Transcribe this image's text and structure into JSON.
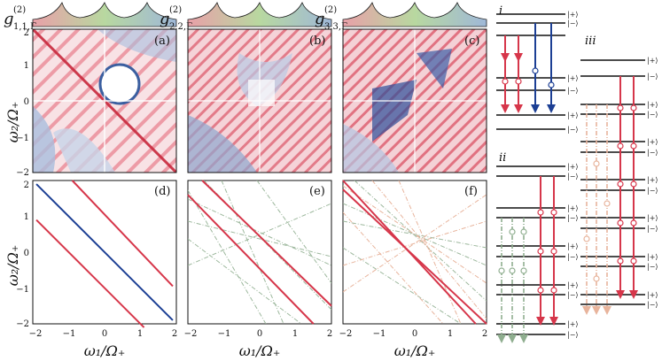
{
  "titles": [
    {
      "base": "g",
      "sup": "(2)",
      "sub": "1,1,Γ"
    },
    {
      "base": "g",
      "sup": "(2)",
      "sub": "2,2,Γ"
    },
    {
      "base": "g",
      "sup": "(2)",
      "sub": "3,3,Γ"
    }
  ],
  "panel_tags": [
    "(a)",
    "(b)",
    "(c)",
    "(d)",
    "(e)",
    "(f)"
  ],
  "axis": {
    "ylabel": "ω₂/Ω₊",
    "xlabel": "ω₁/Ω₊",
    "ticks": [
      "−2",
      "−1",
      "0",
      "1",
      "2"
    ]
  },
  "schemes": {
    "labels": [
      "i",
      "ii",
      "iii"
    ],
    "plus": "|+⟩",
    "minus": "|−⟩"
  },
  "colors": {
    "red": "#d6364a",
    "blue": "#1c3f94",
    "green": "#8fae8f",
    "peach": "#e8b49c",
    "pink_grad": "#e8a0a8",
    "green_grad": "#b8d8a0",
    "blue_grad": "#9fb8d8"
  },
  "chart_data": [
    {
      "type": "line",
      "panel": "(d)",
      "xlim": [
        -2,
        2
      ],
      "ylim": [
        -2,
        2
      ],
      "series": [
        {
          "color": "blue",
          "x": [
            -1.9,
            1.9
          ],
          "y": [
            1.9,
            -1.9
          ]
        },
        {
          "color": "red",
          "x": [
            -1.9,
            1.1
          ],
          "y": [
            0.9,
            -2.1
          ]
        },
        {
          "color": "red",
          "x": [
            -0.9,
            1.9
          ],
          "y": [
            2.0,
            -0.95
          ]
        }
      ]
    },
    {
      "type": "line",
      "panel": "(e)",
      "xlim": [
        -2,
        2
      ],
      "ylim": [
        -2,
        2
      ],
      "series": [
        {
          "color": "red",
          "x": [
            -2,
            1.5
          ],
          "y": [
            1.6,
            -2.0
          ]
        },
        {
          "color": "red",
          "x": [
            -1.6,
            2.0
          ],
          "y": [
            2.0,
            -1.5
          ]
        }
      ]
    },
    {
      "type": "line",
      "panel": "(f)",
      "xlim": [
        -2,
        2
      ],
      "ylim": [
        -2,
        2
      ],
      "series": [
        {
          "color": "red",
          "x": [
            -2,
            1.7
          ],
          "y": [
            2.0,
            -2.0
          ]
        },
        {
          "color": "red",
          "x": [
            -2,
            2.0
          ],
          "y": [
            1.75,
            -2.0
          ]
        }
      ]
    }
  ]
}
